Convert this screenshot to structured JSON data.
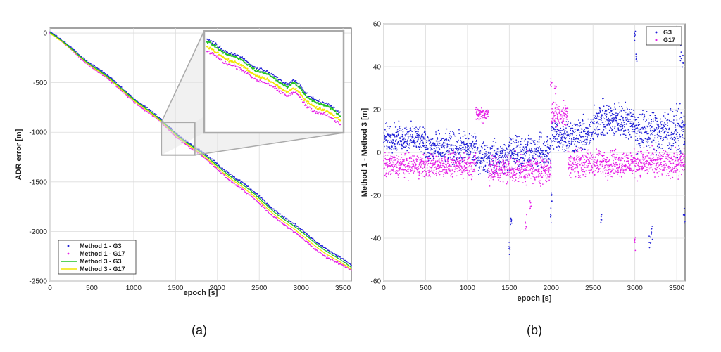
{
  "chart_data": [
    {
      "type": "line",
      "panel_label": "(a)",
      "xlabel": "epoch [s]",
      "ylabel": "ADR error [m]",
      "xlim": [
        0,
        3600
      ],
      "ylim": [
        -2500,
        50
      ],
      "xticks": [
        0,
        500,
        1000,
        1500,
        2000,
        2500,
        3000,
        3500
      ],
      "yticks": [
        0,
        -500,
        -1000,
        -1500,
        -2000,
        -2500
      ],
      "grid": true,
      "legend_position": "bottom-left",
      "inset": {
        "description": "zoom of region",
        "xrange": [
          1330,
          1730
        ],
        "yrange": [
          -1230,
          -900
        ]
      },
      "series": [
        {
          "name": "Method 1 - G3",
          "style": "dots",
          "color": "#1f1fd6",
          "x": [
            0,
            300,
            600,
            900,
            1200,
            1500,
            1800,
            2100,
            2400,
            2700,
            3000,
            3300,
            3600
          ],
          "y": [
            10,
            -180,
            -380,
            -580,
            -790,
            -1000,
            -1200,
            -1380,
            -1580,
            -1790,
            -1990,
            -2170,
            -2350
          ]
        },
        {
          "name": "Method 1 - G17",
          "style": "dots",
          "color": "#e61ee6",
          "x": [
            0,
            300,
            600,
            900,
            1200,
            1500,
            1800,
            2100,
            2400,
            2700,
            3000,
            3300,
            3600
          ],
          "y": [
            0,
            -200,
            -410,
            -610,
            -820,
            -1030,
            -1240,
            -1440,
            -1650,
            -1860,
            -2070,
            -2250,
            -2400
          ]
        },
        {
          "name": "Method 3 - G3",
          "style": "line",
          "color": "#22c322",
          "x": [
            0,
            300,
            600,
            900,
            1200,
            1500,
            1800,
            2100,
            2400,
            2700,
            3000,
            3300,
            3600
          ],
          "y": [
            5,
            -190,
            -390,
            -590,
            -800,
            -1010,
            -1210,
            -1400,
            -1600,
            -1810,
            -2010,
            -2190,
            -2370
          ]
        },
        {
          "name": "Method 3 - G17",
          "style": "line",
          "color": "#f2e600",
          "x": [
            0,
            300,
            600,
            900,
            1200,
            1500,
            1800,
            2100,
            2400,
            2700,
            3000,
            3300,
            3600
          ],
          "y": [
            -5,
            -195,
            -400,
            -600,
            -810,
            -1020,
            -1225,
            -1420,
            -1625,
            -1835,
            -2040,
            -2220,
            -2390
          ]
        }
      ]
    },
    {
      "type": "scatter",
      "panel_label": "(b)",
      "xlabel": "epoch [s]",
      "ylabel": "Method 1 - Method 3 [m]",
      "xlim": [
        0,
        3600
      ],
      "ylim": [
        -60,
        60
      ],
      "xticks": [
        0,
        500,
        1000,
        1500,
        2000,
        2500,
        3000,
        3500
      ],
      "yticks": [
        60,
        40,
        20,
        0,
        -20,
        -40,
        -60
      ],
      "grid": true,
      "legend_position": "top-right",
      "series": [
        {
          "name": "G3",
          "color": "#1f1fd6",
          "segments": [
            {
              "x0": 0,
              "x1": 500,
              "mean": 7,
              "spread": 7
            },
            {
              "x0": 500,
              "x1": 1100,
              "mean": 2,
              "spread": 8
            },
            {
              "x0": 1100,
              "x1": 1500,
              "mean": -2,
              "spread": 8
            },
            {
              "x0": 1500,
              "x1": 2000,
              "mean": 0,
              "spread": 9
            },
            {
              "x0": 2000,
              "x1": 2500,
              "mean": 8,
              "spread": 9
            },
            {
              "x0": 2500,
              "x1": 3000,
              "mean": 15,
              "spread": 9
            },
            {
              "x0": 3000,
              "x1": 3600,
              "mean": 10,
              "spread": 11
            }
          ],
          "outliers": {
            "x": [
              1500,
              1520,
              2000,
              2010,
              2600,
              3000,
              3020,
              3180,
              3200,
              3550,
              3570,
              3590
            ],
            "y": [
              -44,
              -33,
              -30,
              -20,
              -30,
              54,
              45,
              -42,
              -38,
              45,
              42,
              -29
            ]
          }
        },
        {
          "name": "G17",
          "color": "#e61ee6",
          "segments": [
            {
              "x0": 0,
              "x1": 1100,
              "mean": -6,
              "spread": 6
            },
            {
              "x0": 1100,
              "x1": 1250,
              "mean": 18,
              "spread": 4
            },
            {
              "x0": 1250,
              "x1": 2000,
              "mean": -8,
              "spread": 7
            },
            {
              "x0": 2000,
              "x1": 2200,
              "mean": 18,
              "spread": 7
            },
            {
              "x0": 2200,
              "x1": 3600,
              "mean": -5,
              "spread": 7
            }
          ],
          "outliers": {
            "x": [
              1700,
              1750,
              2000,
              2050,
              3000
            ],
            "y": [
              -33,
              -25,
              33,
              30,
              -42
            ]
          }
        }
      ]
    }
  ]
}
